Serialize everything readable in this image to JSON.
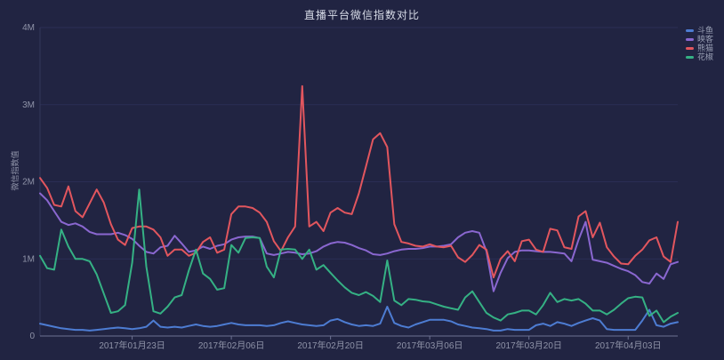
{
  "title": "直播平台微信指数对比",
  "colors": {
    "background": "#212442",
    "title_text": "#d8dce8",
    "axis_text": "#8f93a8",
    "grid_line": "#2b2e55",
    "axis_line": "#6d7292",
    "series_blue": "#4d7cd2",
    "series_purple": "#8a67d0",
    "series_red": "#e2565e",
    "series_green": "#35b184"
  },
  "chart_data": {
    "type": "line",
    "title": "直播平台微信指数对比",
    "unit": "millions (M)",
    "grid": true,
    "legend_position": "top-right",
    "y_axis": {
      "name": "微信指数值",
      "tick_labels": [
        "0",
        "1M",
        "2M",
        "3M",
        "4M"
      ],
      "max_millions": 4
    },
    "x_axis": {
      "tick_labels": [
        "2017年01月23日",
        "2017年02月06日",
        "2017年02月20日",
        "2017年03月06日",
        "2017年03月20日",
        "2017年04月03日"
      ],
      "tick_indices": [
        13,
        27,
        41,
        55,
        69,
        83
      ],
      "num_points": 91
    },
    "series": [
      {
        "name": "斗鱼",
        "color": "#4d7cd2",
        "values": [
          0.16,
          0.14,
          0.12,
          0.1,
          0.09,
          0.08,
          0.08,
          0.07,
          0.08,
          0.09,
          0.1,
          0.11,
          0.1,
          0.09,
          0.1,
          0.12,
          0.2,
          0.12,
          0.11,
          0.12,
          0.11,
          0.13,
          0.15,
          0.13,
          0.12,
          0.13,
          0.15,
          0.17,
          0.15,
          0.14,
          0.14,
          0.14,
          0.13,
          0.14,
          0.17,
          0.19,
          0.17,
          0.15,
          0.14,
          0.13,
          0.14,
          0.2,
          0.22,
          0.18,
          0.15,
          0.13,
          0.14,
          0.13,
          0.16,
          0.38,
          0.17,
          0.13,
          0.11,
          0.15,
          0.18,
          0.21,
          0.21,
          0.21,
          0.19,
          0.15,
          0.13,
          0.11,
          0.1,
          0.09,
          0.07,
          0.07,
          0.09,
          0.08,
          0.08,
          0.08,
          0.14,
          0.16,
          0.13,
          0.18,
          0.16,
          0.13,
          0.17,
          0.2,
          0.23,
          0.2,
          0.09,
          0.08,
          0.08,
          0.08,
          0.08,
          0.2,
          0.34,
          0.14,
          0.12,
          0.16,
          0.18
        ]
      },
      {
        "name": "映客",
        "color": "#8a67d0",
        "values": [
          1.85,
          1.76,
          1.62,
          1.48,
          1.44,
          1.46,
          1.42,
          1.35,
          1.32,
          1.32,
          1.32,
          1.34,
          1.31,
          1.26,
          1.17,
          1.09,
          1.07,
          1.15,
          1.17,
          1.3,
          1.2,
          1.09,
          1.11,
          1.16,
          1.13,
          1.17,
          1.19,
          1.25,
          1.28,
          1.29,
          1.29,
          1.27,
          1.07,
          1.05,
          1.07,
          1.09,
          1.08,
          1.06,
          1.07,
          1.1,
          1.16,
          1.2,
          1.22,
          1.21,
          1.18,
          1.14,
          1.11,
          1.06,
          1.05,
          1.07,
          1.1,
          1.12,
          1.13,
          1.13,
          1.14,
          1.16,
          1.16,
          1.17,
          1.19,
          1.28,
          1.34,
          1.36,
          1.34,
          1.1,
          0.58,
          0.82,
          1.01,
          1.09,
          1.11,
          1.11,
          1.1,
          1.09,
          1.09,
          1.08,
          1.07,
          0.97,
          1.25,
          1.48,
          0.99,
          0.97,
          0.95,
          0.91,
          0.87,
          0.84,
          0.79,
          0.7,
          0.68,
          0.81,
          0.74,
          0.93,
          0.96
        ]
      },
      {
        "name": "熊猫",
        "color": "#e2565e",
        "values": [
          2.05,
          1.92,
          1.7,
          1.68,
          1.94,
          1.62,
          1.54,
          1.72,
          1.9,
          1.73,
          1.45,
          1.25,
          1.18,
          1.4,
          1.42,
          1.42,
          1.38,
          1.28,
          1.04,
          1.12,
          1.12,
          1.04,
          1.08,
          1.22,
          1.28,
          1.08,
          1.12,
          1.58,
          1.68,
          1.68,
          1.66,
          1.6,
          1.48,
          1.23,
          1.1,
          1.28,
          1.42,
          3.24,
          1.42,
          1.48,
          1.36,
          1.6,
          1.66,
          1.6,
          1.58,
          1.85,
          2.2,
          2.55,
          2.63,
          2.45,
          1.45,
          1.22,
          1.2,
          1.17,
          1.16,
          1.19,
          1.16,
          1.15,
          1.17,
          1.02,
          0.96,
          1.05,
          1.18,
          1.12,
          0.76,
          1.0,
          1.1,
          0.97,
          1.23,
          1.25,
          1.12,
          1.09,
          1.39,
          1.37,
          1.15,
          1.13,
          1.55,
          1.62,
          1.28,
          1.47,
          1.15,
          1.03,
          0.94,
          0.93,
          1.04,
          1.12,
          1.24,
          1.28,
          1.03,
          0.96,
          1.48
        ]
      },
      {
        "name": "花椒",
        "color": "#35b184",
        "values": [
          1.04,
          0.88,
          0.86,
          1.38,
          1.16,
          1.0,
          1.0,
          0.97,
          0.8,
          0.55,
          0.3,
          0.32,
          0.4,
          0.95,
          1.9,
          0.9,
          0.32,
          0.29,
          0.38,
          0.5,
          0.53,
          0.85,
          1.12,
          0.81,
          0.74,
          0.6,
          0.62,
          1.18,
          1.08,
          1.27,
          1.28,
          1.27,
          0.9,
          0.76,
          1.12,
          1.13,
          1.12,
          1.0,
          1.12,
          0.86,
          0.92,
          0.82,
          0.72,
          0.63,
          0.56,
          0.53,
          0.57,
          0.52,
          0.44,
          0.98,
          0.46,
          0.4,
          0.48,
          0.47,
          0.45,
          0.44,
          0.41,
          0.38,
          0.36,
          0.34,
          0.5,
          0.58,
          0.44,
          0.3,
          0.24,
          0.2,
          0.28,
          0.3,
          0.33,
          0.33,
          0.28,
          0.4,
          0.56,
          0.44,
          0.48,
          0.46,
          0.48,
          0.42,
          0.33,
          0.33,
          0.28,
          0.34,
          0.42,
          0.49,
          0.51,
          0.5,
          0.26,
          0.33,
          0.18,
          0.25,
          0.3
        ]
      }
    ]
  }
}
